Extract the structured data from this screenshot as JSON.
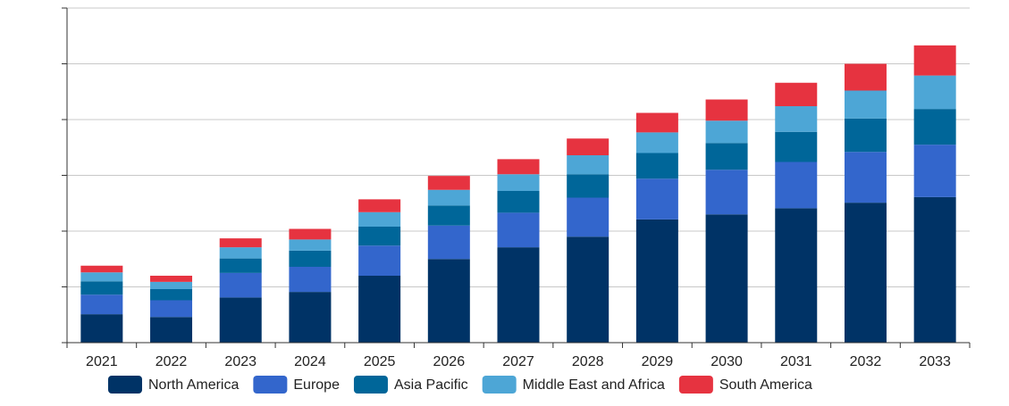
{
  "chart_data": {
    "type": "bar",
    "stacked": true,
    "categories": [
      "2021",
      "2022",
      "2023",
      "2024",
      "2025",
      "2026",
      "2027",
      "2028",
      "2029",
      "2030",
      "2031",
      "2032",
      "2033"
    ],
    "series": [
      {
        "name": "North America",
        "color": "#003366",
        "values": [
          2.55,
          2.3,
          4.05,
          4.55,
          6.0,
          7.5,
          8.55,
          9.5,
          11.05,
          11.5,
          12.05,
          12.55,
          13.05
        ]
      },
      {
        "name": "Europe",
        "color": "#3366cc",
        "values": [
          1.75,
          1.5,
          2.2,
          2.25,
          2.7,
          3.0,
          3.1,
          3.5,
          3.65,
          4.0,
          4.15,
          4.55,
          4.7
        ]
      },
      {
        "name": "Asia Pacific",
        "color": "#006699",
        "values": [
          1.2,
          1.0,
          1.3,
          1.45,
          1.7,
          1.8,
          1.95,
          2.1,
          2.3,
          2.4,
          2.7,
          3.0,
          3.2
        ]
      },
      {
        "name": "Middle East and Africa",
        "color": "#4da6d6",
        "values": [
          0.8,
          0.65,
          1.0,
          1.0,
          1.3,
          1.4,
          1.5,
          1.7,
          1.85,
          2.0,
          2.3,
          2.5,
          3.0
        ]
      },
      {
        "name": "South America",
        "color": "#e63340",
        "values": [
          0.6,
          0.55,
          0.8,
          0.95,
          1.15,
          1.25,
          1.35,
          1.5,
          1.75,
          1.9,
          2.1,
          2.4,
          2.7
        ]
      }
    ],
    "ylim": [
      0,
      30
    ],
    "ytick_step": 5,
    "show_ytick_labels": false,
    "grid": true,
    "legend_position": "bottom"
  }
}
